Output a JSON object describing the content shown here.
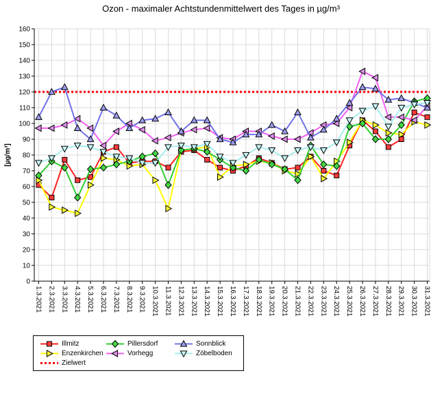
{
  "title": "Ozon -  maximaler Achtstundenmittelwert des Tages in µg/m³",
  "chart_data": {
    "type": "line",
    "ylabel": "[µg/m³]",
    "ylim": [
      0,
      160
    ],
    "yticks": [
      0,
      10,
      20,
      30,
      40,
      50,
      60,
      70,
      80,
      90,
      100,
      110,
      120,
      130,
      140,
      150,
      160
    ],
    "grid": "both",
    "legend_position": "bottom-left",
    "x_labels": [
      "1.3.2021",
      "2.3.2021",
      "3.3.2021",
      "4.3.2021",
      "5.3.2021",
      "6.3.2021",
      "7.3.2021",
      "8.3.2021",
      "9.3.2021",
      "10.3.2021",
      "11.3.2021",
      "12.3.2021",
      "13.3.2021",
      "14.3.2021",
      "15.3.2021",
      "16.3.2021",
      "17.3.2021",
      "18.3.2021",
      "19.3.2021",
      "20.3.2021",
      "21.3.2021",
      "22.3.2021",
      "23.3.2021",
      "24.3.2021",
      "25.3.2021",
      "26.3.2021",
      "27.3.2021",
      "28.3.2021",
      "29.3.2021",
      "30.3.2021",
      "31.3.2021"
    ],
    "target_line": {
      "name": "Zielwert",
      "value": 120,
      "color": "#ff0000",
      "style": "dotted"
    },
    "series": [
      {
        "name": "Illmitz",
        "marker": "square",
        "line_color": "#ff2020",
        "fill_color": "#ff3a3a",
        "values": [
          61,
          53,
          77,
          64,
          66,
          82,
          85,
          75,
          76,
          76,
          72,
          82,
          83,
          77,
          72,
          70,
          73,
          78,
          75,
          71,
          72,
          79,
          70,
          67,
          86,
          102,
          95,
          85,
          90,
          107,
          104
        ]
      },
      {
        "name": "Enzenkirchen",
        "marker": "triangle-right",
        "line_color": "#ffff00",
        "fill_color": "#ffff33",
        "values": [
          64,
          47,
          45,
          43,
          61,
          78,
          77,
          73,
          74,
          64,
          46,
          83,
          84,
          85,
          66,
          73,
          74,
          76,
          75,
          70,
          68,
          79,
          65,
          76,
          88,
          102,
          99,
          94,
          93,
          101,
          99
        ]
      },
      {
        "name": "Pillersdorf",
        "marker": "diamond",
        "line_color": "#2fcc2f",
        "fill_color": "#44d644",
        "values": [
          67,
          76,
          72,
          53,
          71,
          72,
          74,
          76,
          79,
          81,
          61,
          83,
          84,
          82,
          77,
          72,
          70,
          77,
          74,
          71,
          64,
          86,
          74,
          73,
          98,
          100,
          90,
          90,
          99,
          114,
          116
        ]
      },
      {
        "name": "Vorhegg",
        "marker": "triangle-left",
        "line_color": "#f35ef3",
        "fill_color": "#dc8fe6",
        "values": [
          97,
          97,
          99,
          103,
          97,
          86,
          95,
          100,
          96,
          89,
          91,
          94,
          96,
          97,
          91,
          90,
          95,
          95,
          92,
          90,
          90,
          94,
          99,
          100,
          110,
          133,
          129,
          104,
          104,
          102,
          111
        ]
      },
      {
        "name": "Sonnblick",
        "marker": "triangle-up",
        "line_color": "#7171ea",
        "fill_color": "#9c9cec",
        "values": [
          104,
          120,
          123,
          97,
          90,
          110,
          105,
          97,
          102,
          103,
          107,
          95,
          102,
          102,
          90,
          88,
          93,
          93,
          99,
          95,
          107,
          91,
          96,
          103,
          113,
          123,
          122,
          115,
          116,
          113,
          110
        ]
      },
      {
        "name": "Zöbelboden",
        "marker": "triangle-down",
        "line_color": "#a8eded",
        "fill_color": "#c9f7f7",
        "values": [
          75,
          78,
          84,
          86,
          85,
          82,
          79,
          78,
          75,
          75,
          85,
          86,
          85,
          87,
          79,
          75,
          80,
          85,
          83,
          78,
          83,
          85,
          83,
          88,
          102,
          108,
          111,
          98,
          110,
          112,
          113
        ]
      }
    ],
    "legend_rows": [
      [
        "Illmitz",
        "Pillersdorf",
        "Sonnblick"
      ],
      [
        "Enzenkirchen",
        "Vorhegg",
        "Zöbelboden"
      ],
      [
        "Zielwert"
      ]
    ]
  }
}
